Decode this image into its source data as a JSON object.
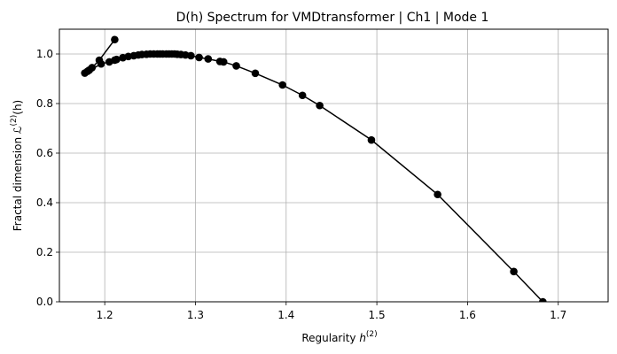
{
  "chart_data": {
    "type": "line",
    "title": "D(h) Spectrum for VMDtransformer | Ch1 | Mode 1",
    "xlabel": {
      "text": "Regularity ",
      "var": "h",
      "sup": "(2)"
    },
    "ylabel": {
      "text": "Fractal dimension ",
      "var": "ℒ",
      "sup": "(2)",
      "tail": "(h)"
    },
    "xlim": [
      1.15,
      1.755
    ],
    "ylim": [
      0.0,
      1.1
    ],
    "xticks": [
      1.2,
      1.3,
      1.4,
      1.5,
      1.6,
      1.7
    ],
    "xtick_labels": [
      "1.2",
      "1.3",
      "1.4",
      "1.5",
      "1.6",
      "1.7"
    ],
    "yticks": [
      0.0,
      0.2,
      0.4,
      0.6,
      0.8,
      1.0
    ],
    "ytick_labels": [
      "0.0",
      "0.2",
      "0.4",
      "0.6",
      "0.8",
      "1.0"
    ],
    "grid": true,
    "color": "#000000",
    "marker": "circle",
    "series": [
      {
        "x": [
          1.211,
          1.194,
          1.186,
          1.183,
          1.181,
          1.178,
          1.196,
          1.205,
          1.211,
          1.213,
          1.22,
          1.226,
          1.232,
          1.237,
          1.241,
          1.246,
          1.25,
          1.254,
          1.258,
          1.261,
          1.264,
          1.268,
          1.271,
          1.274,
          1.277,
          1.28,
          1.284,
          1.289,
          1.295,
          1.304,
          1.314,
          1.327,
          1.331,
          1.345,
          1.366,
          1.396,
          1.418,
          1.437,
          1.494,
          1.567,
          1.651,
          1.683
        ],
        "y": [
          1.058,
          0.975,
          0.945,
          0.935,
          0.93,
          0.923,
          0.96,
          0.968,
          0.975,
          0.978,
          0.985,
          0.99,
          0.993,
          0.996,
          0.998,
          0.999,
          1.0,
          1.0,
          1.0,
          1.0,
          1.0,
          1.0,
          1.0,
          1.0,
          1.0,
          0.999,
          0.998,
          0.996,
          0.993,
          0.986,
          0.98,
          0.97,
          0.968,
          0.952,
          0.922,
          0.875,
          0.833,
          0.792,
          0.653,
          0.433,
          0.122,
          0.0
        ]
      }
    ]
  }
}
